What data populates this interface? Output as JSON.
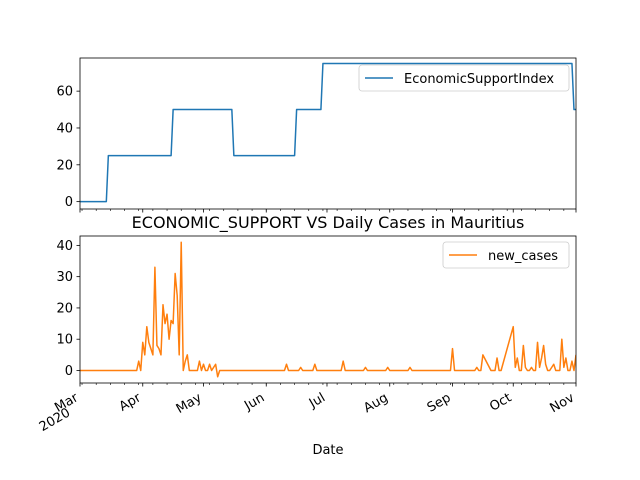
{
  "chart_data": [
    {
      "type": "line",
      "title": "",
      "xlabel": "",
      "ylabel": "",
      "xlim": [
        "2020-03-01",
        "2020-11-01"
      ],
      "ylim": [
        -4,
        78
      ],
      "yticks": [
        0,
        20,
        40,
        60
      ],
      "x_tick_labels_shown": false,
      "legend_position": "upper right",
      "series": [
        {
          "name": "EconomicSupportIndex",
          "color": "#1f77b4",
          "x": [
            "2020-03-01",
            "2020-03-14",
            "2020-03-15",
            "2020-04-15",
            "2020-04-16",
            "2020-05-15",
            "2020-05-16",
            "2020-06-15",
            "2020-06-16",
            "2020-06-28",
            "2020-06-29",
            "2020-10-30",
            "2020-10-31",
            "2020-11-01"
          ],
          "values": [
            0,
            0,
            25,
            25,
            50,
            50,
            25,
            25,
            50,
            50,
            75,
            75,
            50,
            50
          ]
        }
      ]
    },
    {
      "type": "line",
      "title": "ECONOMIC_SUPPORT VS Daily Cases in Mauritius",
      "xlabel": "Date",
      "ylabel": "",
      "xlim": [
        "2020-03-01",
        "2020-11-01"
      ],
      "ylim": [
        -4,
        43
      ],
      "yticks": [
        0,
        10,
        20,
        30,
        40
      ],
      "xticks": [
        {
          "date": "2020-03-01",
          "label": "Mar",
          "sublabel": "2020"
        },
        {
          "date": "2020-04-01",
          "label": "Apr"
        },
        {
          "date": "2020-05-01",
          "label": "May"
        },
        {
          "date": "2020-06-01",
          "label": "Jun"
        },
        {
          "date": "2020-07-01",
          "label": "Jul"
        },
        {
          "date": "2020-08-01",
          "label": "Aug"
        },
        {
          "date": "2020-09-01",
          "label": "Sep"
        },
        {
          "date": "2020-10-01",
          "label": "Oct"
        },
        {
          "date": "2020-11-01",
          "label": "Nov"
        }
      ],
      "legend_position": "upper right",
      "series": [
        {
          "name": "new_cases",
          "color": "#ff7f0e",
          "x": [
            "2020-03-01",
            "2020-03-29",
            "2020-03-30",
            "2020-03-31",
            "2020-04-01",
            "2020-04-02",
            "2020-04-03",
            "2020-04-04",
            "2020-04-05",
            "2020-04-06",
            "2020-04-07",
            "2020-04-08",
            "2020-04-09",
            "2020-04-10",
            "2020-04-11",
            "2020-04-12",
            "2020-04-13",
            "2020-04-14",
            "2020-04-15",
            "2020-04-16",
            "2020-04-17",
            "2020-04-18",
            "2020-04-19",
            "2020-04-20",
            "2020-04-21",
            "2020-04-22",
            "2020-04-23",
            "2020-04-24",
            "2020-04-25",
            "2020-04-26",
            "2020-04-27",
            "2020-04-28",
            "2020-04-29",
            "2020-04-30",
            "2020-05-01",
            "2020-05-02",
            "2020-05-03",
            "2020-05-04",
            "2020-05-05",
            "2020-05-06",
            "2020-05-07",
            "2020-05-08",
            "2020-05-09",
            "2020-05-10",
            "2020-05-11",
            "2020-05-12",
            "2020-05-13",
            "2020-05-14",
            "2020-05-15",
            "2020-05-16",
            "2020-06-10",
            "2020-06-11",
            "2020-06-12",
            "2020-06-17",
            "2020-06-18",
            "2020-06-19",
            "2020-06-24",
            "2020-06-25",
            "2020-06-26",
            "2020-07-08",
            "2020-07-09",
            "2020-07-10",
            "2020-07-19",
            "2020-07-20",
            "2020-07-21",
            "2020-07-30",
            "2020-07-31",
            "2020-08-01",
            "2020-08-10",
            "2020-08-11",
            "2020-08-12",
            "2020-08-31",
            "2020-09-01",
            "2020-09-02",
            "2020-09-11",
            "2020-09-12",
            "2020-09-13",
            "2020-09-14",
            "2020-09-15",
            "2020-09-16",
            "2020-09-20",
            "2020-09-21",
            "2020-09-22",
            "2020-09-23",
            "2020-09-24",
            "2020-09-25",
            "2020-10-01",
            "2020-10-02",
            "2020-10-03",
            "2020-10-04",
            "2020-10-05",
            "2020-10-06",
            "2020-10-07",
            "2020-10-08",
            "2020-10-09",
            "2020-10-10",
            "2020-10-11",
            "2020-10-12",
            "2020-10-13",
            "2020-10-14",
            "2020-10-15",
            "2020-10-16",
            "2020-10-17",
            "2020-10-18",
            "2020-10-19",
            "2020-10-20",
            "2020-10-21",
            "2020-10-22",
            "2020-10-23",
            "2020-10-24",
            "2020-10-25",
            "2020-10-26",
            "2020-10-27",
            "2020-10-28",
            "2020-10-29",
            "2020-10-30",
            "2020-10-31",
            "2020-11-01"
          ],
          "values": [
            0,
            0,
            3,
            0,
            9,
            5,
            14,
            9,
            7,
            5,
            33,
            8,
            7,
            5,
            21,
            15,
            18,
            10,
            16,
            15,
            31,
            24,
            5,
            41,
            0,
            3,
            5,
            0,
            0,
            0,
            0,
            0,
            3,
            0,
            2,
            0,
            0,
            2,
            0,
            1,
            2,
            -2,
            0,
            0,
            0,
            0,
            0,
            0,
            0,
            0,
            0,
            2,
            0,
            0,
            1,
            0,
            0,
            2,
            0,
            0,
            3,
            0,
            0,
            1,
            0,
            0,
            1,
            0,
            0,
            1,
            0,
            0,
            7,
            0,
            0,
            0,
            1,
            0,
            0,
            5,
            0,
            0,
            0,
            4,
            0,
            0,
            14,
            1,
            4,
            0,
            0,
            8,
            1,
            0,
            0,
            1,
            0,
            0,
            9,
            1,
            4,
            8,
            2,
            0,
            0,
            1,
            2,
            0,
            0,
            0,
            10,
            1,
            4,
            0,
            0,
            3,
            0,
            5
          ]
        }
      ]
    }
  ]
}
